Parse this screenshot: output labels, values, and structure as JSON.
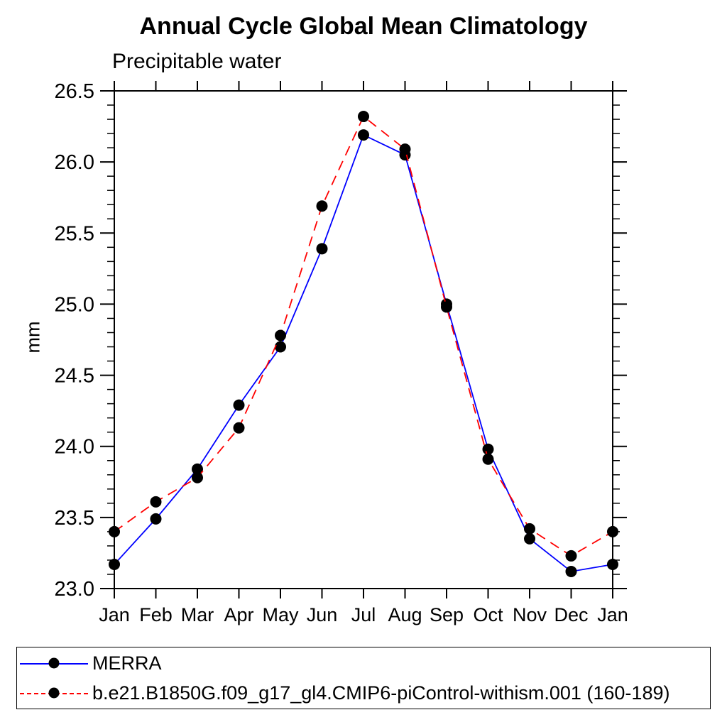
{
  "title": "Annual Cycle Global Mean Climatology",
  "subtitle": "Precipitable water",
  "ylabel": "mm",
  "chart_data": {
    "type": "line",
    "categories": [
      "Jan",
      "Feb",
      "Mar",
      "Apr",
      "May",
      "Jun",
      "Jul",
      "Aug",
      "Sep",
      "Oct",
      "Nov",
      "Dec",
      "Jan"
    ],
    "series": [
      {
        "name": "MERRA",
        "color": "#0000ff",
        "style": "solid",
        "values": [
          23.17,
          23.49,
          23.84,
          24.29,
          24.7,
          25.39,
          26.19,
          26.05,
          25.0,
          23.98,
          23.35,
          23.12,
          23.17
        ]
      },
      {
        "name": "b.e21.B1850G.f09_g17_gl4.CMIP6-piControl-withism.001 (160-189)",
        "color": "#ff0000",
        "style": "dashed",
        "values": [
          23.4,
          23.61,
          23.78,
          24.13,
          24.78,
          25.69,
          26.32,
          26.09,
          24.98,
          23.91,
          23.42,
          23.23,
          23.4
        ]
      }
    ],
    "ylim": [
      23.0,
      26.5
    ],
    "ytick_major": 0.5,
    "ytick_minor": 0.1,
    "ytick_labels": [
      "23.0",
      "23.5",
      "24.0",
      "24.5",
      "25.0",
      "25.5",
      "26.0",
      "26.5"
    ],
    "marker": "filled-circle",
    "marker_color": "#000000",
    "grid": false,
    "legend_position": "bottom",
    "axis_color": "#000000"
  }
}
